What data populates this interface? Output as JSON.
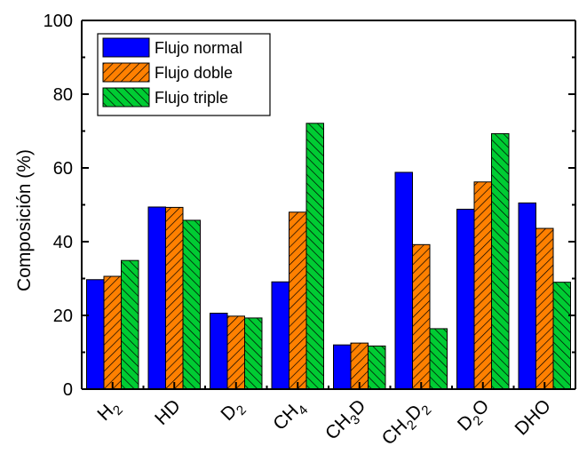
{
  "chart_data": {
    "type": "bar",
    "ylabel": "Composición (%)",
    "ylim": [
      0,
      100
    ],
    "yticks": [
      "0",
      "20",
      "40",
      "60",
      "80",
      "100"
    ],
    "categories": [
      {
        "base": "H",
        "sub": "2",
        "label": "H2"
      },
      {
        "base": "HD",
        "sub": "",
        "label": "HD"
      },
      {
        "base": "D",
        "sub": "2",
        "label": "D2"
      },
      {
        "base": "CH",
        "sub": "4",
        "label": "CH4"
      },
      {
        "parts": [
          {
            "t": "CH",
            "sub": false
          },
          {
            "t": "3",
            "sub": true
          },
          {
            "t": "D",
            "sub": false
          }
        ],
        "label": "CH3D"
      },
      {
        "parts": [
          {
            "t": "CH",
            "sub": false
          },
          {
            "t": "2",
            "sub": true
          },
          {
            "t": "D",
            "sub": false
          },
          {
            "t": "2",
            "sub": true
          }
        ],
        "label": "CH2D2"
      },
      {
        "parts": [
          {
            "t": "D",
            "sub": false
          },
          {
            "t": "2",
            "sub": true
          },
          {
            "t": "O",
            "sub": false
          }
        ],
        "label": "D2O"
      },
      {
        "base": "DHO",
        "sub": "",
        "label": "DHO"
      }
    ],
    "series": [
      {
        "name": "Flujo normal",
        "color": "#0000ff",
        "pattern": "solid",
        "values": [
          29.7,
          49.4,
          20.6,
          29.1,
          12.0,
          58.8,
          48.8,
          50.5
        ]
      },
      {
        "name": "Flujo doble",
        "color": "#ff8000",
        "pattern": "hatch",
        "values": [
          30.6,
          49.3,
          19.8,
          48.0,
          12.5,
          39.2,
          56.2,
          43.6
        ]
      },
      {
        "name": "Flujo triple",
        "color": "#00cc33",
        "pattern": "hatch",
        "values": [
          34.9,
          45.8,
          19.3,
          72.1,
          11.7,
          16.4,
          69.3,
          29.0
        ]
      }
    ],
    "legend": {
      "position": "top-left"
    }
  }
}
